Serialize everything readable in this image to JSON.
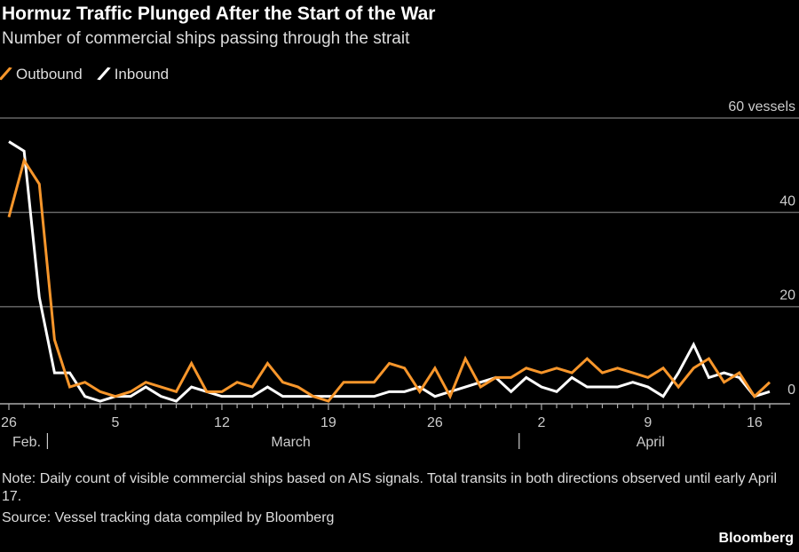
{
  "chart_data": {
    "type": "line",
    "title": "Hormuz Traffic Plunged After the Start of the War",
    "subtitle": "Number of commercial ships passing through the strait",
    "x_start": "Feb 26",
    "x_end": "Apr 17",
    "ylim": [
      0,
      60
    ],
    "y_ticks": [
      "0",
      "20",
      "40",
      "60 vessels"
    ],
    "y_tick_values": [
      0,
      20,
      40,
      60
    ],
    "x_tick_labels": [
      {
        "label": "26",
        "index": 0
      },
      {
        "label": "5",
        "index": 7
      },
      {
        "label": "12",
        "index": 14
      },
      {
        "label": "19",
        "index": 21
      },
      {
        "label": "26",
        "index": 28
      },
      {
        "label": "2",
        "index": 35
      },
      {
        "label": "9",
        "index": 42
      },
      {
        "label": "16",
        "index": 49
      }
    ],
    "month_labels": [
      {
        "label": "Feb.",
        "index": 0
      },
      {
        "label": "March",
        "index": 17
      },
      {
        "label": "April",
        "index": 41
      }
    ],
    "month_separators": [
      3,
      34
    ],
    "grid": true,
    "legend_position": "top-left",
    "series": [
      {
        "name": "Outbound",
        "color": "#f7962b",
        "values": [
          39,
          51,
          46,
          13,
          3,
          4,
          2,
          1,
          2,
          4,
          3,
          2,
          8,
          2,
          2,
          4,
          3,
          8,
          4,
          3,
          1,
          0,
          4,
          4,
          4,
          8,
          7,
          2,
          7,
          1,
          9,
          3,
          5,
          5,
          7,
          6,
          7,
          6,
          9,
          6,
          7,
          6,
          5,
          7,
          3,
          7,
          9,
          4,
          6,
          1,
          4
        ]
      },
      {
        "name": "Inbound",
        "color": "#ffffff",
        "values": [
          55,
          53,
          22,
          6,
          6,
          1,
          0,
          1,
          1,
          3,
          1,
          0,
          3,
          2,
          1,
          1,
          1,
          3,
          1,
          1,
          1,
          1,
          1,
          1,
          1,
          2,
          2,
          3,
          1,
          2,
          3,
          4,
          5,
          2,
          5,
          3,
          2,
          5,
          3,
          3,
          3,
          4,
          3,
          1,
          6,
          12,
          5,
          6,
          5,
          1,
          2
        ]
      }
    ]
  },
  "note": "Note: Daily count of visible commercial ships based on AIS signals. Total transits in both directions observed until early April 17.",
  "source": "Source: Vessel tracking data compiled by Bloomberg",
  "brand": "Bloomberg"
}
